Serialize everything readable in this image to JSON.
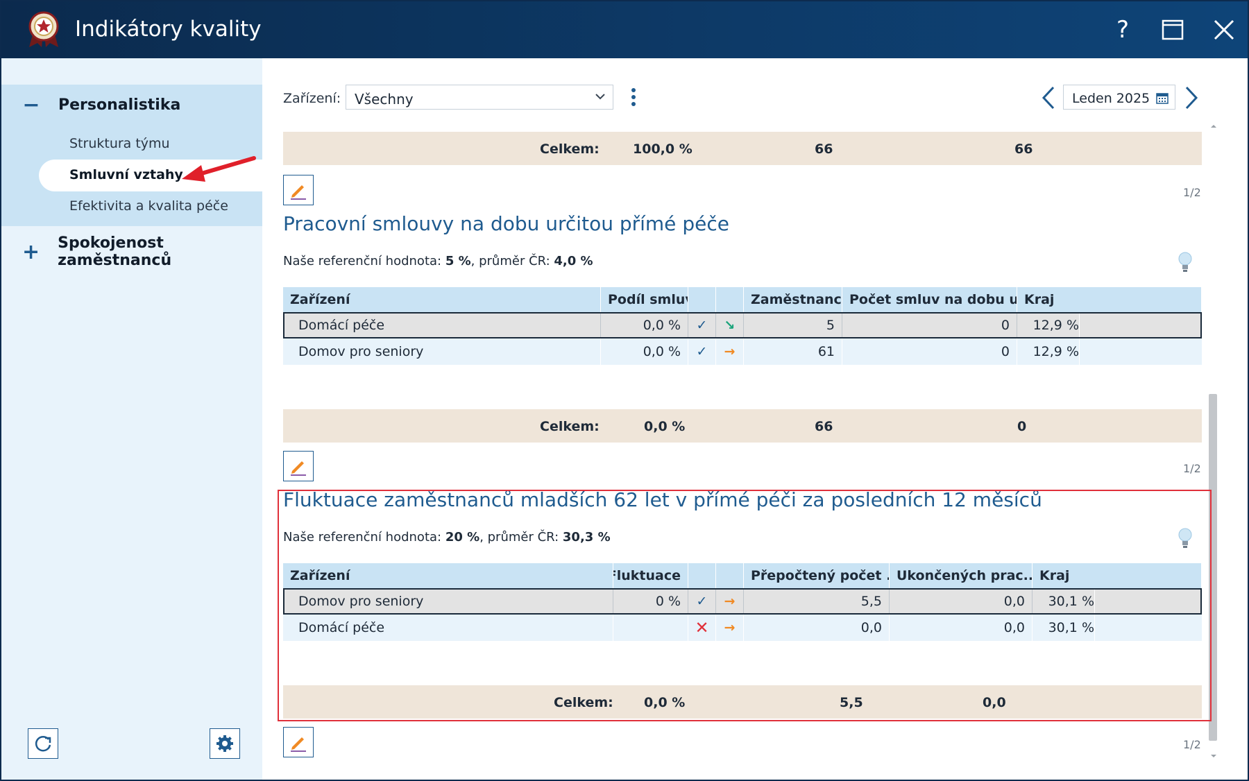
{
  "window": {
    "title": "Indikátory kvality"
  },
  "sidebar": {
    "groups": [
      {
        "label": "Personalistika",
        "expanded_sign": "−",
        "items": [
          {
            "label": "Struktura týmu"
          },
          {
            "label": "Smluvní vztahy",
            "selected": true
          },
          {
            "label": "Efektivita a kvalita péče"
          }
        ]
      },
      {
        "label": "Spokojenost zaměstnanců",
        "expanded_sign": "+"
      }
    ]
  },
  "toolbar": {
    "filter_label": "Zařízení:",
    "filter_value": "Všechny",
    "date_value": "Leden 2025"
  },
  "top_totals": {
    "label": "Celkem:",
    "share": "100,0 %",
    "employees": "66",
    "count": "66"
  },
  "pager_top": "1/2",
  "section1": {
    "title": "Pracovní smlouvy na dobu určitou přímé péče",
    "ref_prefix": "Naše referenční hodnota: ",
    "ref_value": "5 %",
    "avg_prefix": ", průměr ČR: ",
    "avg_value": "4,0 %",
    "columns": [
      "Zařízení",
      "Podíl smluv",
      "",
      "",
      "Zaměstnanců",
      "Počet smluv na dobu určit...",
      "Kraj"
    ],
    "rows": [
      {
        "facility": "Domácí péče",
        "share": "0,0 %",
        "status": "✓",
        "trend": "↘",
        "employees": "5",
        "count": "0",
        "region": "12,9 %"
      },
      {
        "facility": "Domov pro seniory",
        "share": "0,0 %",
        "status": "✓",
        "trend": "→",
        "employees": "61",
        "count": "0",
        "region": "12,9 %"
      }
    ],
    "totals": {
      "label": "Celkem:",
      "share": "0,0 %",
      "employees": "66",
      "count": "0"
    },
    "pager": "1/2"
  },
  "section2": {
    "title": "Fluktuace zaměstnanců mladších 62 let v přímé péči za posledních 12 měsíců",
    "ref_prefix": "Naše referenční hodnota: ",
    "ref_value": "20 %",
    "avg_prefix": ", průměr ČR: ",
    "avg_value": "30,3 %",
    "columns": [
      "Zařízení",
      "Fluktuace",
      "",
      "",
      "Přepočtený počet ...",
      "Ukončených prac...",
      "Kraj"
    ],
    "rows": [
      {
        "facility": "Domov pro seniory",
        "fluct": "0 %",
        "status": "✓",
        "trend": "→",
        "recalc": "5,5",
        "ended": "0,0",
        "region": "30,1 %"
      },
      {
        "facility": "Domácí péče",
        "fluct": "",
        "status": "✕",
        "trend": "→",
        "recalc": "0,0",
        "ended": "0,0",
        "region": "30,1 %"
      }
    ],
    "totals": {
      "label": "Celkem:",
      "fluct": "0,0 %",
      "recalc": "5,5",
      "ended": "0,0"
    },
    "pager": "1/2"
  },
  "colors": {
    "accent": "#1f5b8f",
    "title_bar": "#0d3966",
    "check": "#1f5b8f",
    "cross": "#e0303a",
    "trend_down": "#1aa37a",
    "trend_flat": "#f08a24",
    "highlight": "#e0303a"
  }
}
